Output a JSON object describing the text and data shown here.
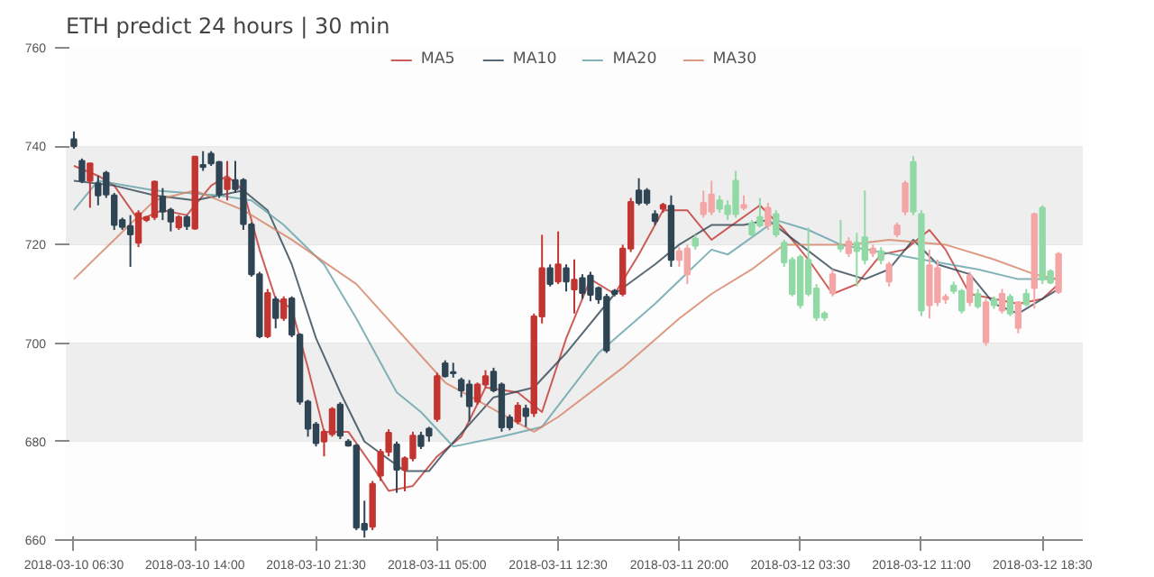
{
  "chart_data": {
    "type": "candlestick",
    "title": "ETH predict 24 hours | 30 min",
    "x": [
      "2018-03-10T06:30",
      "2018-03-10T07:00",
      "2018-03-10T07:30",
      "2018-03-10T08:00",
      "2018-03-10T08:30",
      "2018-03-10T09:00",
      "2018-03-10T09:30",
      "2018-03-10T10:00",
      "2018-03-10T10:30",
      "2018-03-10T11:00",
      "2018-03-10T11:30",
      "2018-03-10T12:00",
      "2018-03-10T12:30",
      "2018-03-10T13:00",
      "2018-03-10T13:30",
      "2018-03-10T14:00",
      "2018-03-10T14:30",
      "2018-03-10T15:00",
      "2018-03-10T15:30",
      "2018-03-10T16:00",
      "2018-03-10T16:30",
      "2018-03-10T17:00",
      "2018-03-10T17:30",
      "2018-03-10T18:00",
      "2018-03-10T18:30",
      "2018-03-10T19:00",
      "2018-03-10T19:30",
      "2018-03-10T20:00",
      "2018-03-10T20:30",
      "2018-03-10T21:00",
      "2018-03-10T21:30",
      "2018-03-10T22:00",
      "2018-03-10T22:30",
      "2018-03-10T23:00",
      "2018-03-10T23:30",
      "2018-03-11T00:00",
      "2018-03-11T00:30",
      "2018-03-11T01:00",
      "2018-03-11T01:30",
      "2018-03-11T02:00",
      "2018-03-11T02:30",
      "2018-03-11T03:00",
      "2018-03-11T03:30",
      "2018-03-11T04:00",
      "2018-03-11T04:30",
      "2018-03-11T05:00",
      "2018-03-11T05:30",
      "2018-03-11T06:00",
      "2018-03-11T06:30",
      "2018-03-11T07:00",
      "2018-03-11T07:30",
      "2018-03-11T08:00",
      "2018-03-11T08:30",
      "2018-03-11T09:00",
      "2018-03-11T09:30",
      "2018-03-11T10:00",
      "2018-03-11T10:30",
      "2018-03-11T11:00",
      "2018-03-11T11:30",
      "2018-03-11T12:00",
      "2018-03-11T12:30",
      "2018-03-11T13:00",
      "2018-03-11T13:30",
      "2018-03-11T14:00",
      "2018-03-11T14:30",
      "2018-03-11T15:00",
      "2018-03-11T15:30",
      "2018-03-11T16:00",
      "2018-03-11T16:30",
      "2018-03-11T17:00",
      "2018-03-11T17:30",
      "2018-03-11T18:00",
      "2018-03-11T18:30",
      "2018-03-11T19:00",
      "2018-03-11T19:30",
      "2018-03-11T20:00",
      "2018-03-11T20:30",
      "2018-03-11T21:00",
      "2018-03-11T21:30",
      "2018-03-11T22:00",
      "2018-03-11T22:30",
      "2018-03-11T23:00",
      "2018-03-11T23:30",
      "2018-03-12T00:00",
      "2018-03-12T00:30",
      "2018-03-12T01:00",
      "2018-03-12T01:30",
      "2018-03-12T02:00",
      "2018-03-12T02:30",
      "2018-03-12T03:00",
      "2018-03-12T03:30",
      "2018-03-12T04:00",
      "2018-03-12T04:30",
      "2018-03-12T05:00",
      "2018-03-12T05:30",
      "2018-03-12T06:00",
      "2018-03-12T06:30",
      "2018-03-12T07:00",
      "2018-03-12T07:30",
      "2018-03-12T08:00",
      "2018-03-12T08:30",
      "2018-03-12T09:00",
      "2018-03-12T09:30",
      "2018-03-12T10:00",
      "2018-03-12T10:30",
      "2018-03-12T11:00",
      "2018-03-12T11:30",
      "2018-03-12T12:00",
      "2018-03-12T12:30",
      "2018-03-12T13:00",
      "2018-03-12T13:30",
      "2018-03-12T14:00",
      "2018-03-12T14:30",
      "2018-03-12T15:00",
      "2018-03-12T15:30",
      "2018-03-12T16:00",
      "2018-03-12T16:30",
      "2018-03-12T17:00",
      "2018-03-12T17:30",
      "2018-03-12T18:00",
      "2018-03-12T18:30",
      "2018-03-12T19:00",
      "2018-03-12T19:30"
    ],
    "ohlc": [
      [
        741.4,
        743,
        739.5,
        740
      ],
      [
        737,
        737.5,
        732.5,
        733
      ],
      [
        733,
        736.5,
        727.5,
        736.5
      ],
      [
        732.5,
        734,
        728,
        730
      ],
      [
        734.6,
        735,
        729.5,
        730.2
      ],
      [
        730,
        730.5,
        723,
        724
      ],
      [
        725,
        725.5,
        723,
        723.6
      ],
      [
        723.8,
        726,
        715.5,
        722.1
      ],
      [
        720.4,
        727,
        719.5,
        726.4
      ],
      [
        725,
        725.8,
        724.6,
        725.6
      ],
      [
        725.6,
        733,
        725,
        732.8
      ],
      [
        729.8,
        731.5,
        725,
        726.7
      ],
      [
        727.1,
        727.5,
        722.7,
        724.7
      ],
      [
        723.5,
        726,
        723,
        725.6
      ],
      [
        725.6,
        726,
        723,
        723.8
      ],
      [
        723.3,
        738,
        723,
        737.9
      ],
      [
        736.2,
        739,
        735,
        735.8
      ],
      [
        738.5,
        739,
        736,
        736.5
      ],
      [
        736.8,
        737,
        729.5,
        730.2
      ],
      [
        731.3,
        737,
        729,
        733.4
      ],
      [
        733.1,
        737,
        730.5,
        731.3
      ],
      [
        733.1,
        733.5,
        723,
        724.2
      ],
      [
        724.1,
        724.5,
        713.5,
        714
      ],
      [
        714,
        714.5,
        701,
        701.4
      ],
      [
        701.4,
        711,
        701,
        710.2
      ],
      [
        708.9,
        709.5,
        703,
        705.1
      ],
      [
        705.1,
        709.5,
        704.5,
        708.9
      ],
      [
        709.1,
        709.5,
        701.2,
        701.7
      ],
      [
        701.7,
        702,
        687.5,
        688.1
      ],
      [
        688.1,
        688.5,
        681,
        682.6
      ],
      [
        683.5,
        684,
        679,
        679.7
      ],
      [
        680,
        682.5,
        677,
        682
      ],
      [
        681.5,
        687,
        681,
        686.6
      ],
      [
        687.5,
        688,
        680.5,
        681.2
      ],
      [
        680,
        680.5,
        679,
        679.2
      ],
      [
        679.2,
        679.5,
        662,
        662.5
      ],
      [
        663.3,
        668,
        660.5,
        662.1
      ],
      [
        662.7,
        672,
        662,
        671.4
      ],
      [
        673.1,
        678.5,
        672,
        677.9
      ],
      [
        677.9,
        682.5,
        677,
        681.8
      ],
      [
        679.4,
        680,
        669.6,
        674.3
      ],
      [
        674.3,
        677,
        669.9,
        676.6
      ],
      [
        676.6,
        682,
        676,
        681.2
      ],
      [
        681.2,
        682,
        678.5,
        679.1
      ],
      [
        682.6,
        683,
        680,
        681.2
      ],
      [
        684.6,
        694,
        684,
        693.3
      ],
      [
        695.9,
        696.5,
        693,
        693.3
      ],
      [
        694.1,
        696,
        693,
        693.9
      ],
      [
        692.5,
        693,
        689,
        690.4
      ],
      [
        691.6,
        692.5,
        684.1,
        687.2
      ],
      [
        688.1,
        692,
        687.5,
        691.6
      ],
      [
        691.6,
        694.5,
        691,
        693.3
      ],
      [
        694.2,
        695,
        690,
        690.4
      ],
      [
        691.6,
        692,
        682,
        682.9
      ],
      [
        684.9,
        685.5,
        682.3,
        682.9
      ],
      [
        684.1,
        688,
        683.5,
        687.3
      ],
      [
        686.7,
        687.5,
        683,
        685.2
      ],
      [
        685.8,
        706,
        685,
        705.4
      ],
      [
        705.4,
        722,
        704,
        715.2
      ],
      [
        715.2,
        716,
        711.5,
        712
      ],
      [
        712.5,
        722.7,
        712,
        716
      ],
      [
        715.2,
        716,
        710.5,
        712.5
      ],
      [
        710.9,
        717,
        706,
        712.9
      ],
      [
        713.2,
        714,
        709,
        710.2
      ],
      [
        713.7,
        714.5,
        708.5,
        709.8
      ],
      [
        711.2,
        711.5,
        708,
        708.9
      ],
      [
        709.4,
        710,
        698,
        698.5
      ],
      [
        710.6,
        711,
        709.5,
        710
      ],
      [
        710,
        720,
        709.5,
        719.2
      ],
      [
        719.2,
        729.5,
        718.5,
        728.7
      ],
      [
        731,
        733.5,
        728,
        728.5
      ],
      [
        731,
        731.5,
        728,
        728.5
      ],
      [
        726.2,
        727,
        724,
        724.8
      ],
      [
        727.3,
        728.5,
        726.5,
        728.1
      ],
      [
        727.9,
        730,
        715.5,
        716.9
      ],
      [
        716.9,
        719.5,
        715.5,
        718.7
      ],
      [
        714,
        720,
        712,
        719.2
      ],
      [
        721.2,
        722,
        719,
        719.8
      ],
      [
        726.2,
        731,
        725.5,
        728.5
      ],
      [
        726.7,
        733,
        726,
        730.2
      ],
      [
        729,
        730,
        726.5,
        727.3
      ],
      [
        727.9,
        729,
        725,
        726.2
      ],
      [
        733,
        735,
        725.5,
        726.2
      ],
      [
        727.5,
        730,
        727,
        728.1
      ],
      [
        724.4,
        725,
        721.5,
        722.1
      ],
      [
        725.6,
        729.5,
        723.5,
        723.9
      ],
      [
        723.9,
        728.5,
        723,
        727.5
      ],
      [
        726.2,
        727,
        721.5,
        722.1
      ],
      [
        720.4,
        721,
        715.5,
        716.4
      ],
      [
        716.9,
        717.5,
        709.5,
        710
      ],
      [
        717.5,
        718,
        707,
        707.7
      ],
      [
        716.9,
        723.5,
        709.5,
        710
      ],
      [
        711.1,
        712,
        704.5,
        705.2
      ],
      [
        706,
        706.5,
        704.5,
        705.2
      ],
      [
        710.2,
        715,
        709.5,
        714
      ],
      [
        719.8,
        725,
        718.5,
        719.2
      ],
      [
        718.3,
        721.5,
        717.5,
        720.6
      ],
      [
        720.4,
        722.4,
        711.5,
        718.7
      ],
      [
        721.5,
        731,
        716,
        716.9
      ],
      [
        718.3,
        720,
        717.5,
        719.2
      ],
      [
        718.7,
        719.5,
        716,
        716.9
      ],
      [
        712.5,
        716.5,
        711.5,
        716
      ],
      [
        722.1,
        724.5,
        721.5,
        723.9
      ],
      [
        726.7,
        733,
        726,
        732.5
      ],
      [
        736.8,
        738,
        726,
        726.7
      ],
      [
        726.2,
        727,
        705.5,
        706.6
      ],
      [
        707.7,
        719,
        705,
        715.8
      ],
      [
        708.3,
        717,
        707.5,
        715.2
      ],
      [
        708.9,
        710,
        708,
        709.4
      ],
      [
        711.7,
        712.5,
        710,
        710.6
      ],
      [
        710.6,
        711,
        706,
        706.6
      ],
      [
        708.3,
        714.5,
        707.5,
        713.7
      ],
      [
        710,
        711,
        707,
        707.5
      ],
      [
        700.2,
        709,
        699.5,
        708.3
      ],
      [
        708.9,
        709.5,
        707,
        707.7
      ],
      [
        706.6,
        711,
        706,
        710
      ],
      [
        709.4,
        710,
        705.5,
        706
      ],
      [
        703.1,
        708.5,
        702,
        708.3
      ],
      [
        710,
        711,
        707.5,
        707.9
      ],
      [
        711.2,
        726.5,
        707,
        726.2
      ],
      [
        727.5,
        728,
        712,
        712.9
      ],
      [
        714.6,
        715,
        712,
        712.3
      ],
      [
        710.4,
        718.5,
        710,
        718.1
      ]
    ],
    "colors": [
      "#2f4554",
      "#2f4554",
      "#c23531",
      "#2f4554",
      "#2f4554",
      "#2f4554",
      "#2f4554",
      "#2f4554",
      "#c23531",
      "#c23531",
      "#c23531",
      "#2f4554",
      "#2f4554",
      "#c23531",
      "#2f4554",
      "#c23531",
      "#2f4554",
      "#2f4554",
      "#2f4554",
      "#c23531",
      "#2f4554",
      "#2f4554",
      "#2f4554",
      "#2f4554",
      "#c23531",
      "#2f4554",
      "#c23531",
      "#2f4554",
      "#2f4554",
      "#2f4554",
      "#2f4554",
      "#c23531",
      "#c23531",
      "#2f4554",
      "#2f4554",
      "#2f4554",
      "#2f4554",
      "#c23531",
      "#c23531",
      "#c23531",
      "#2f4554",
      "#c23531",
      "#c23531",
      "#2f4554",
      "#2f4554",
      "#c23531",
      "#2f4554",
      "#2f4554",
      "#2f4554",
      "#2f4554",
      "#c23531",
      "#c23531",
      "#2f4554",
      "#2f4554",
      "#2f4554",
      "#c23531",
      "#2f4554",
      "#c23531",
      "#c23531",
      "#2f4554",
      "#c23531",
      "#2f4554",
      "#c23531",
      "#2f4554",
      "#2f4554",
      "#2f4554",
      "#2f4554",
      "#2f4554",
      "#c23531",
      "#c23531",
      "#2f4554",
      "#2f4554",
      "#2f4554",
      "#c23531",
      "#2f4554",
      "#f4a6a6",
      "#f4a6a6",
      "#91d9a5",
      "#f4a6a6",
      "#f4a6a6",
      "#91d9a5",
      "#91d9a5",
      "#91d9a5",
      "#f4a6a6",
      "#91d9a5",
      "#91d9a5",
      "#f4a6a6",
      "#91d9a5",
      "#91d9a5",
      "#91d9a5",
      "#91d9a5",
      "#91d9a5",
      "#91d9a5",
      "#91d9a5",
      "#f4a6a6",
      "#91d9a5",
      "#f4a6a6",
      "#91d9a5",
      "#91d9a5",
      "#f4a6a6",
      "#91d9a5",
      "#f4a6a6",
      "#f4a6a6",
      "#f4a6a6",
      "#91d9a5",
      "#91d9a5",
      "#f4a6a6",
      "#f4a6a6",
      "#f4a6a6",
      "#91d9a5",
      "#91d9a5",
      "#f4a6a6",
      "#91d9a5",
      "#f4a6a6",
      "#91d9a5",
      "#f4a6a6",
      "#91d9a5",
      "#f4a6a6",
      "#91d9a5",
      "#f4a6a6",
      "#91d9a5",
      "#91d9a5",
      "#f4a6a6"
    ],
    "series": [
      {
        "name": "MA5",
        "type": "line",
        "color": "#c23531",
        "x": [
          "2018-03-10T06:30",
          "2018-03-10T08:00",
          "2018-03-10T09:00",
          "2018-03-10T10:30",
          "2018-03-10T12:00",
          "2018-03-10T13:30",
          "2018-03-10T15:00",
          "2018-03-10T16:00",
          "2018-03-10T17:00",
          "2018-03-10T18:00",
          "2018-03-10T19:00",
          "2018-03-10T20:00",
          "2018-03-10T21:00",
          "2018-03-10T22:00",
          "2018-03-10T23:30",
          "2018-03-11T01:00",
          "2018-03-11T02:00",
          "2018-03-11T03:30",
          "2018-03-11T05:00",
          "2018-03-11T06:30",
          "2018-03-11T08:00",
          "2018-03-11T10:00",
          "2018-03-11T11:30",
          "2018-03-11T13:00",
          "2018-03-11T14:30",
          "2018-03-11T16:00",
          "2018-03-11T17:30",
          "2018-03-11T19:00",
          "2018-03-11T20:30",
          "2018-03-11T22:00",
          "2018-03-12T01:00",
          "2018-03-12T02:30",
          "2018-03-12T04:00",
          "2018-03-12T05:30",
          "2018-03-12T07:00",
          "2018-03-12T08:30",
          "2018-03-12T10:00",
          "2018-03-12T11:30",
          "2018-03-12T12:30",
          "2018-03-12T14:00",
          "2018-03-12T15:30",
          "2018-03-12T17:00",
          "2018-03-12T18:30",
          "2018-03-12T19:30"
        ],
        "values": [
          736,
          734,
          732,
          725,
          727,
          726,
          732,
          734,
          731,
          719,
          709,
          707,
          695,
          682,
          682,
          675,
          670,
          671,
          677,
          681,
          691,
          690,
          686,
          701,
          713,
          710,
          718,
          727,
          727,
          721,
          728,
          723,
          717,
          710,
          712,
          718,
          719,
          723,
          719,
          710,
          709,
          708,
          709,
          712
        ]
      },
      {
        "name": "MA10",
        "type": "line",
        "color": "#2f4554",
        "x": [
          "2018-03-10T06:30",
          "2018-03-10T09:00",
          "2018-03-10T11:30",
          "2018-03-10T14:00",
          "2018-03-10T15:30",
          "2018-03-10T17:00",
          "2018-03-10T18:30",
          "2018-03-10T20:00",
          "2018-03-10T21:30",
          "2018-03-10T23:00",
          "2018-03-11T00:30",
          "2018-03-11T03:00",
          "2018-03-11T04:30",
          "2018-03-11T05:30",
          "2018-03-11T08:30",
          "2018-03-11T11:00",
          "2018-03-11T13:00",
          "2018-03-11T16:00",
          "2018-03-11T18:30",
          "2018-03-11T20:00",
          "2018-03-11T22:00",
          "2018-03-12T00:00",
          "2018-03-12T01:30",
          "2018-03-12T03:30",
          "2018-03-12T05:30",
          "2018-03-12T07:30",
          "2018-03-12T09:00",
          "2018-03-12T10:30",
          "2018-03-12T12:00",
          "2018-03-12T14:00",
          "2018-03-12T15:30",
          "2018-03-12T17:00",
          "2018-03-12T18:00",
          "2018-03-12T19:30"
        ],
        "values": [
          733,
          732,
          730,
          729,
          730,
          731,
          727,
          716,
          701,
          690,
          680,
          674,
          674,
          678,
          689,
          691,
          698,
          710,
          716,
          720,
          724,
          724,
          725,
          720,
          715,
          713,
          715,
          721,
          716,
          714,
          708,
          706,
          708,
          711
        ]
      },
      {
        "name": "MA20",
        "type": "line",
        "color": "#61a0a8",
        "x": [
          "2018-03-10T06:30",
          "2018-03-10T08:00",
          "2018-03-10T11:30",
          "2018-03-10T15:30",
          "2018-03-10T17:30",
          "2018-03-10T19:30",
          "2018-03-10T22:00",
          "2018-03-11T00:00",
          "2018-03-11T02:30",
          "2018-03-11T04:00",
          "2018-03-11T06:00",
          "2018-03-11T09:00",
          "2018-03-11T11:30",
          "2018-03-11T15:00",
          "2018-03-11T18:30",
          "2018-03-11T22:00",
          "2018-03-11T23:00",
          "2018-03-12T02:00",
          "2018-03-12T04:00",
          "2018-03-12T06:00",
          "2018-03-12T11:00",
          "2018-03-12T14:30",
          "2018-03-12T17:00",
          "2018-03-12T19:30"
        ],
        "values": [
          727,
          733,
          731,
          730,
          729,
          724,
          716,
          705,
          690,
          686,
          679,
          681,
          683,
          698,
          708,
          719,
          718,
          725,
          723,
          720,
          717,
          715,
          713,
          713
        ]
      },
      {
        "name": "MA30",
        "type": "line",
        "color": "#d48265",
        "x": [
          "2018-03-10T06:30",
          "2018-03-10T09:00",
          "2018-03-10T11:30",
          "2018-03-10T14:00",
          "2018-03-10T17:00",
          "2018-03-10T20:00",
          "2018-03-11T00:00",
          "2018-03-11T05:30",
          "2018-03-11T11:00",
          "2018-03-11T12:30",
          "2018-03-11T16:30",
          "2018-03-11T20:00",
          "2018-03-11T22:00",
          "2018-03-12T00:30",
          "2018-03-12T02:30",
          "2018-03-12T06:30",
          "2018-03-12T09:00",
          "2018-03-12T12:30",
          "2018-03-12T15:30",
          "2018-03-12T18:00",
          "2018-03-12T19:30"
        ],
        "values": [
          713,
          721,
          729,
          731,
          727,
          721,
          712,
          692,
          682,
          685,
          695,
          705,
          710,
          715,
          720,
          720,
          721,
          720,
          717,
          714,
          713
        ]
      }
    ],
    "xlim": [
      "2018-03-10T06:00",
      "2018-03-12T21:00"
    ],
    "xticks": [
      {
        "value": "2018-03-10T06:30",
        "label": "2018-03-10 06:30"
      },
      {
        "value": "2018-03-10T14:00",
        "label": "2018-03-10 14:00"
      },
      {
        "value": "2018-03-10T21:30",
        "label": "2018-03-10 21:30"
      },
      {
        "value": "2018-03-11T05:00",
        "label": "2018-03-11 05:00"
      },
      {
        "value": "2018-03-11T12:30",
        "label": "2018-03-11 12:30"
      },
      {
        "value": "2018-03-11T20:00",
        "label": "2018-03-11 20:00"
      },
      {
        "value": "2018-03-12T03:30",
        "label": "2018-03-12 03:30"
      },
      {
        "value": "2018-03-12T11:00",
        "label": "2018-03-12 11:00"
      },
      {
        "value": "2018-03-12T18:30",
        "label": "2018-03-12 18:30"
      }
    ],
    "ylim": [
      660,
      760
    ],
    "yticks": [
      660,
      680,
      700,
      720,
      740,
      760
    ],
    "grid": "y",
    "legend": "top",
    "bands": [
      {
        "axis": "y",
        "from": 720,
        "to": 740,
        "color": "#eeeeee"
      },
      {
        "axis": "y",
        "from": 680,
        "to": 700,
        "color": "#eeeeee"
      }
    ]
  }
}
